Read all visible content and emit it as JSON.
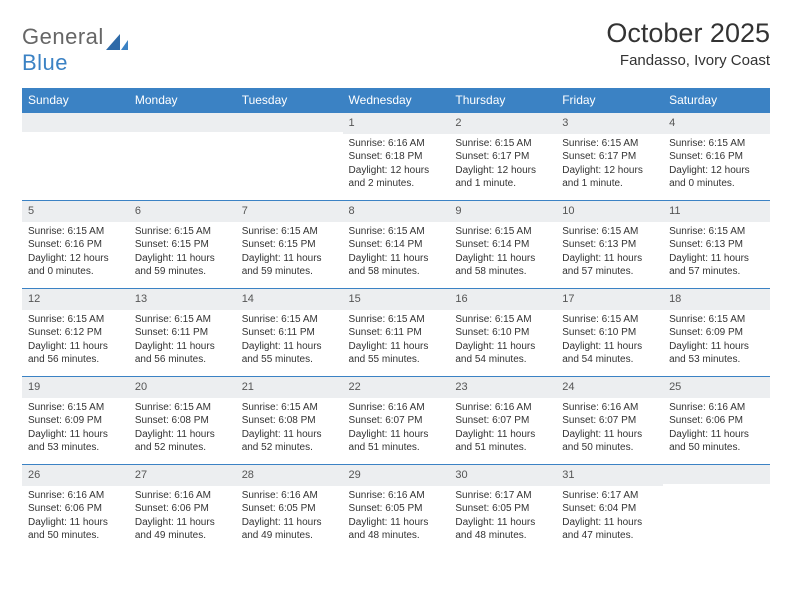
{
  "logo": {
    "text1": "General",
    "text2": "Blue"
  },
  "title": "October 2025",
  "subtitle": "Fandasso, Ivory Coast",
  "colors": {
    "header_bg": "#3b82c4",
    "header_text": "#ffffff",
    "daynum_bg": "#eceef0",
    "border": "#3b82c4",
    "page_bg": "#ffffff",
    "text": "#333333",
    "logo_gray": "#666666"
  },
  "day_headers": [
    "Sunday",
    "Monday",
    "Tuesday",
    "Wednesday",
    "Thursday",
    "Friday",
    "Saturday"
  ],
  "weeks": [
    [
      {
        "n": "",
        "sr": "",
        "ss": "",
        "dl": ""
      },
      {
        "n": "",
        "sr": "",
        "ss": "",
        "dl": ""
      },
      {
        "n": "",
        "sr": "",
        "ss": "",
        "dl": ""
      },
      {
        "n": "1",
        "sr": "Sunrise: 6:16 AM",
        "ss": "Sunset: 6:18 PM",
        "dl": "Daylight: 12 hours and 2 minutes."
      },
      {
        "n": "2",
        "sr": "Sunrise: 6:15 AM",
        "ss": "Sunset: 6:17 PM",
        "dl": "Daylight: 12 hours and 1 minute."
      },
      {
        "n": "3",
        "sr": "Sunrise: 6:15 AM",
        "ss": "Sunset: 6:17 PM",
        "dl": "Daylight: 12 hours and 1 minute."
      },
      {
        "n": "4",
        "sr": "Sunrise: 6:15 AM",
        "ss": "Sunset: 6:16 PM",
        "dl": "Daylight: 12 hours and 0 minutes."
      }
    ],
    [
      {
        "n": "5",
        "sr": "Sunrise: 6:15 AM",
        "ss": "Sunset: 6:16 PM",
        "dl": "Daylight: 12 hours and 0 minutes."
      },
      {
        "n": "6",
        "sr": "Sunrise: 6:15 AM",
        "ss": "Sunset: 6:15 PM",
        "dl": "Daylight: 11 hours and 59 minutes."
      },
      {
        "n": "7",
        "sr": "Sunrise: 6:15 AM",
        "ss": "Sunset: 6:15 PM",
        "dl": "Daylight: 11 hours and 59 minutes."
      },
      {
        "n": "8",
        "sr": "Sunrise: 6:15 AM",
        "ss": "Sunset: 6:14 PM",
        "dl": "Daylight: 11 hours and 58 minutes."
      },
      {
        "n": "9",
        "sr": "Sunrise: 6:15 AM",
        "ss": "Sunset: 6:14 PM",
        "dl": "Daylight: 11 hours and 58 minutes."
      },
      {
        "n": "10",
        "sr": "Sunrise: 6:15 AM",
        "ss": "Sunset: 6:13 PM",
        "dl": "Daylight: 11 hours and 57 minutes."
      },
      {
        "n": "11",
        "sr": "Sunrise: 6:15 AM",
        "ss": "Sunset: 6:13 PM",
        "dl": "Daylight: 11 hours and 57 minutes."
      }
    ],
    [
      {
        "n": "12",
        "sr": "Sunrise: 6:15 AM",
        "ss": "Sunset: 6:12 PM",
        "dl": "Daylight: 11 hours and 56 minutes."
      },
      {
        "n": "13",
        "sr": "Sunrise: 6:15 AM",
        "ss": "Sunset: 6:11 PM",
        "dl": "Daylight: 11 hours and 56 minutes."
      },
      {
        "n": "14",
        "sr": "Sunrise: 6:15 AM",
        "ss": "Sunset: 6:11 PM",
        "dl": "Daylight: 11 hours and 55 minutes."
      },
      {
        "n": "15",
        "sr": "Sunrise: 6:15 AM",
        "ss": "Sunset: 6:11 PM",
        "dl": "Daylight: 11 hours and 55 minutes."
      },
      {
        "n": "16",
        "sr": "Sunrise: 6:15 AM",
        "ss": "Sunset: 6:10 PM",
        "dl": "Daylight: 11 hours and 54 minutes."
      },
      {
        "n": "17",
        "sr": "Sunrise: 6:15 AM",
        "ss": "Sunset: 6:10 PM",
        "dl": "Daylight: 11 hours and 54 minutes."
      },
      {
        "n": "18",
        "sr": "Sunrise: 6:15 AM",
        "ss": "Sunset: 6:09 PM",
        "dl": "Daylight: 11 hours and 53 minutes."
      }
    ],
    [
      {
        "n": "19",
        "sr": "Sunrise: 6:15 AM",
        "ss": "Sunset: 6:09 PM",
        "dl": "Daylight: 11 hours and 53 minutes."
      },
      {
        "n": "20",
        "sr": "Sunrise: 6:15 AM",
        "ss": "Sunset: 6:08 PM",
        "dl": "Daylight: 11 hours and 52 minutes."
      },
      {
        "n": "21",
        "sr": "Sunrise: 6:15 AM",
        "ss": "Sunset: 6:08 PM",
        "dl": "Daylight: 11 hours and 52 minutes."
      },
      {
        "n": "22",
        "sr": "Sunrise: 6:16 AM",
        "ss": "Sunset: 6:07 PM",
        "dl": "Daylight: 11 hours and 51 minutes."
      },
      {
        "n": "23",
        "sr": "Sunrise: 6:16 AM",
        "ss": "Sunset: 6:07 PM",
        "dl": "Daylight: 11 hours and 51 minutes."
      },
      {
        "n": "24",
        "sr": "Sunrise: 6:16 AM",
        "ss": "Sunset: 6:07 PM",
        "dl": "Daylight: 11 hours and 50 minutes."
      },
      {
        "n": "25",
        "sr": "Sunrise: 6:16 AM",
        "ss": "Sunset: 6:06 PM",
        "dl": "Daylight: 11 hours and 50 minutes."
      }
    ],
    [
      {
        "n": "26",
        "sr": "Sunrise: 6:16 AM",
        "ss": "Sunset: 6:06 PM",
        "dl": "Daylight: 11 hours and 50 minutes."
      },
      {
        "n": "27",
        "sr": "Sunrise: 6:16 AM",
        "ss": "Sunset: 6:06 PM",
        "dl": "Daylight: 11 hours and 49 minutes."
      },
      {
        "n": "28",
        "sr": "Sunrise: 6:16 AM",
        "ss": "Sunset: 6:05 PM",
        "dl": "Daylight: 11 hours and 49 minutes."
      },
      {
        "n": "29",
        "sr": "Sunrise: 6:16 AM",
        "ss": "Sunset: 6:05 PM",
        "dl": "Daylight: 11 hours and 48 minutes."
      },
      {
        "n": "30",
        "sr": "Sunrise: 6:17 AM",
        "ss": "Sunset: 6:05 PM",
        "dl": "Daylight: 11 hours and 48 minutes."
      },
      {
        "n": "31",
        "sr": "Sunrise: 6:17 AM",
        "ss": "Sunset: 6:04 PM",
        "dl": "Daylight: 11 hours and 47 minutes."
      },
      {
        "n": "",
        "sr": "",
        "ss": "",
        "dl": ""
      }
    ]
  ]
}
